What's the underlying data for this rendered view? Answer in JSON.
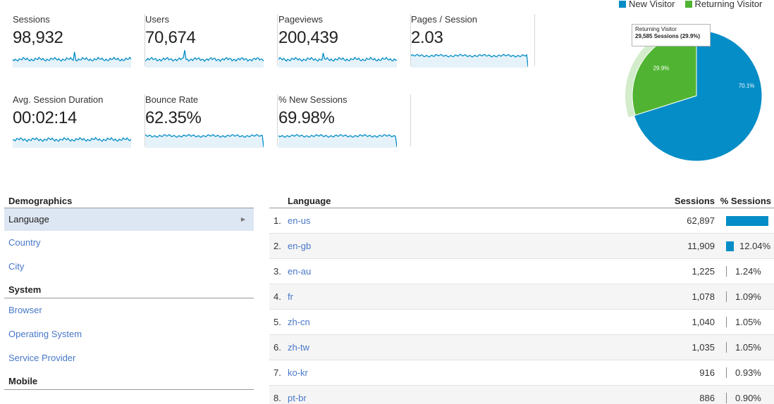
{
  "metrics": [
    {
      "label": "Sessions",
      "value": "98,932"
    },
    {
      "label": "Users",
      "value": "70,674"
    },
    {
      "label": "Pageviews",
      "value": "200,439"
    },
    {
      "label": "Pages / Session",
      "value": "2.03"
    },
    {
      "label": "Avg. Session Duration",
      "value": "00:02:14"
    },
    {
      "label": "Bounce Rate",
      "value": "62.35%"
    },
    {
      "label": "% New Sessions",
      "value": "69.98%"
    }
  ],
  "pie": {
    "legend": [
      {
        "label": "New Visitor",
        "color": "#058dc7"
      },
      {
        "label": "Returning Visitor",
        "color": "#50b432"
      }
    ],
    "slices": [
      {
        "label": "New Visitor",
        "percent": 70.1,
        "text": "70.1%",
        "color": "#058dc7"
      },
      {
        "label": "Returning Visitor",
        "percent": 29.9,
        "text": "29.9%",
        "color": "#50b432"
      }
    ],
    "tooltip": {
      "title": "Returning Visitor",
      "body": "29,585 Sessions (29.9%)"
    }
  },
  "nav": {
    "demographics_header": "Demographics",
    "demographics_items": [
      "Language",
      "Country",
      "City"
    ],
    "system_header": "System",
    "system_items": [
      "Browser",
      "Operating System",
      "Service Provider"
    ],
    "mobile_header": "Mobile"
  },
  "table": {
    "col_language": "Language",
    "col_sessions": "Sessions",
    "col_pct": "% Sessions",
    "rows": [
      {
        "idx": "1.",
        "lang": "en-us",
        "sessions": "62,897",
        "pct_text": "",
        "share": 63.58
      },
      {
        "idx": "2.",
        "lang": "en-gb",
        "sessions": "11,909",
        "pct_text": "12.04%",
        "share": 12.04
      },
      {
        "idx": "3.",
        "lang": "en-au",
        "sessions": "1,225",
        "pct_text": "1.24%",
        "share": 1.24
      },
      {
        "idx": "4.",
        "lang": "fr",
        "sessions": "1,078",
        "pct_text": "1.09%",
        "share": 1.09
      },
      {
        "idx": "5.",
        "lang": "zh-cn",
        "sessions": "1,040",
        "pct_text": "1.05%",
        "share": 1.05
      },
      {
        "idx": "6.",
        "lang": "zh-tw",
        "sessions": "1,035",
        "pct_text": "1.05%",
        "share": 1.05
      },
      {
        "idx": "7.",
        "lang": "ko-kr",
        "sessions": "916",
        "pct_text": "0.93%",
        "share": 0.93
      },
      {
        "idx": "8.",
        "lang": "pt-br",
        "sessions": "886",
        "pct_text": "0.90%",
        "share": 0.9
      }
    ]
  }
}
